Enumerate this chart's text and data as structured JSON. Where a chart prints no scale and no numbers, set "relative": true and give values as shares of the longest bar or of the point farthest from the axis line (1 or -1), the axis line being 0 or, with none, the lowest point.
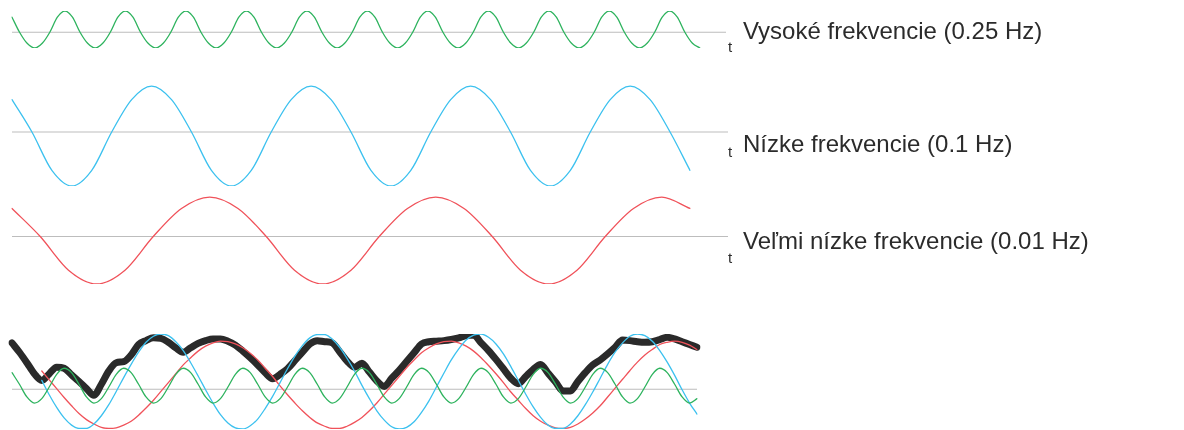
{
  "chart_data": [
    {
      "type": "line",
      "xlabel": "t",
      "relative": true,
      "tick_labels": false,
      "categories": [
        null,
        null,
        null,
        null,
        null,
        null,
        null,
        null,
        null,
        null,
        null,
        null,
        null,
        null,
        null,
        null,
        null,
        null,
        null,
        null,
        null,
        null,
        null,
        null,
        null,
        null,
        null,
        null,
        null,
        null,
        null,
        null,
        null,
        null,
        null,
        null,
        null,
        null,
        null,
        null,
        null,
        null,
        null,
        null,
        null,
        null,
        null,
        null,
        null,
        null,
        null,
        null,
        null,
        null,
        null,
        null,
        null,
        null,
        null,
        null,
        null,
        null,
        null,
        null,
        null,
        null,
        null,
        null,
        null,
        null,
        null,
        null,
        null,
        null,
        null,
        null,
        null,
        null,
        null,
        null,
        null,
        null,
        null,
        null,
        null,
        null,
        null,
        null,
        null,
        null,
        null,
        null
      ],
      "series": [
        {
          "name": "Vysoké frekvencie (0.25 Hz)",
          "color": "#2eb35e",
          "values": [
            0.71,
            0,
            -0.52,
            -0.74,
            -0.52,
            0,
            0.71,
            1,
            0.71,
            0,
            -0.52,
            -0.74,
            -0.52,
            0,
            0.71,
            1,
            0.71,
            0,
            -0.52,
            -0.74,
            -0.52,
            0,
            0.71,
            1,
            0.71,
            0,
            -0.52,
            -0.74,
            -0.52,
            0,
            0.71,
            1,
            0.71,
            0,
            -0.52,
            -0.74,
            -0.52,
            0,
            0.71,
            1,
            0.71,
            0,
            -0.52,
            -0.74,
            -0.52,
            0,
            0.71,
            1,
            0.71,
            0,
            -0.52,
            -0.74,
            -0.52,
            0,
            0.71,
            1,
            0.71,
            0,
            -0.52,
            -0.74,
            -0.52,
            0,
            0.71,
            1,
            0.71,
            0,
            -0.52,
            -0.74,
            -0.52,
            0,
            0.71,
            1,
            0.71,
            0,
            -0.52,
            -0.74,
            -0.52,
            0,
            0.71,
            1,
            0.71,
            0,
            -0.52,
            -0.74,
            -0.52,
            0,
            0.71,
            1,
            0.71,
            0,
            -0.52,
            -0.74
          ]
        }
      ]
    },
    {
      "type": "line",
      "xlabel": "t",
      "relative": true,
      "tick_labels": false,
      "categories": [
        null,
        null,
        null,
        null,
        null,
        null,
        null,
        null,
        null,
        null,
        null,
        null,
        null,
        null,
        null,
        null,
        null,
        null,
        null,
        null,
        null,
        null,
        null,
        null,
        null,
        null,
        null,
        null,
        null,
        null,
        null,
        null,
        null,
        null,
        null
      ],
      "series": [
        {
          "name": "Nízke frekvencie (0.1 Hz)",
          "color": "#3cc1ef",
          "values": [
            0.6,
            0,
            -0.71,
            -1,
            -0.71,
            0,
            0.6,
            0.85,
            0.6,
            0,
            -0.71,
            -1,
            -0.71,
            0,
            0.6,
            0.85,
            0.6,
            0,
            -0.71,
            -1,
            -0.71,
            0,
            0.6,
            0.85,
            0.6,
            0,
            -0.71,
            -1,
            -0.71,
            0,
            0.6,
            0.85,
            0.6,
            0,
            -0.71
          ]
        }
      ]
    },
    {
      "type": "line",
      "xlabel": "t",
      "relative": true,
      "tick_labels": false,
      "categories": [
        null,
        null,
        null,
        null,
        null,
        null,
        null,
        null,
        null,
        null,
        null,
        null,
        null,
        null,
        null,
        null,
        null,
        null,
        null,
        null,
        null,
        null,
        null,
        null,
        null
      ],
      "series": [
        {
          "name": "Veľmi nízke frekvencie (0.01 Hz)",
          "color": "#f0525a",
          "values": [
            0.59,
            0,
            -0.71,
            -1,
            -0.71,
            0,
            0.59,
            0.83,
            0.59,
            0,
            -0.71,
            -1,
            -0.71,
            0,
            0.59,
            0.83,
            0.59,
            0,
            -0.71,
            -1,
            -0.71,
            0,
            0.59,
            0.83,
            0.59
          ]
        }
      ]
    },
    {
      "type": "line",
      "relative": true,
      "tick_labels": false,
      "categories": [
        null,
        null,
        null,
        null,
        null,
        null,
        null,
        null,
        null,
        null,
        null,
        null,
        null,
        null,
        null,
        null,
        null,
        null,
        null,
        null,
        null,
        null,
        null,
        null,
        null,
        null,
        null,
        null,
        null,
        null,
        null,
        null,
        null,
        null,
        null,
        null,
        null,
        null,
        null,
        null,
        null,
        null,
        null,
        null,
        null,
        null,
        null,
        null,
        null,
        null,
        null,
        null,
        null,
        null,
        null,
        null,
        null,
        null,
        null,
        null,
        null,
        null,
        null,
        null,
        null,
        null,
        null,
        null,
        null,
        null,
        null,
        null,
        null,
        null,
        null,
        null,
        null,
        null,
        null,
        null,
        null,
        null,
        null,
        null,
        null,
        null,
        null,
        null,
        null,
        null,
        null,
        null,
        null
      ],
      "series": [
        {
          "color": "#2eb35e",
          "values": [
            0.3,
            0.09,
            -0.14,
            -0.25,
            -0.17,
            0.04,
            0.27,
            0.38,
            0.3,
            0.09,
            -0.14,
            -0.25,
            -0.17,
            0.04,
            0.27,
            0.38,
            0.3,
            0.09,
            -0.14,
            -0.25,
            -0.17,
            0.04,
            0.27,
            0.38,
            0.3,
            0.09,
            -0.14,
            -0.25,
            -0.17,
            0.04,
            0.27,
            0.38,
            0.3,
            0.09,
            -0.14,
            -0.25,
            -0.17,
            0.04,
            0.27,
            0.38,
            0.3,
            0.09,
            -0.14,
            -0.25,
            -0.17,
            0.04,
            0.27,
            0.38,
            0.3,
            0.09,
            -0.14,
            -0.25,
            -0.17,
            0.04,
            0.27,
            0.38,
            0.3,
            0.09,
            -0.14,
            -0.25,
            -0.17,
            0.04,
            0.27,
            0.38,
            0.3,
            0.09,
            -0.14,
            -0.25,
            -0.17,
            0.04,
            0.27,
            0.38,
            0.3,
            0.09,
            -0.14,
            -0.25,
            -0.17,
            0.04,
            0.27,
            0.38,
            0.3,
            0.09,
            -0.14,
            -0.25,
            -0.17,
            0.04,
            0.27,
            0.38,
            0.3,
            0.09,
            -0.14,
            -0.25,
            -0.17
          ]
        },
        {
          "color": "#3cc1ef",
          "values": [
            null,
            null,
            null,
            null,
            0.16,
            -0.1,
            -0.33,
            -0.52,
            -0.65,
            -0.71,
            -0.71,
            -0.63,
            -0.48,
            -0.28,
            -0.04,
            0.21,
            0.45,
            0.67,
            0.85,
            0.96,
            1,
            0.97,
            0.86,
            0.7,
            0.48,
            0.24,
            -0.01,
            -0.25,
            -0.46,
            -0.61,
            -0.7,
            -0.72,
            -0.66,
            -0.54,
            -0.35,
            -0.13,
            0.12,
            0.37,
            0.6,
            0.79,
            0.93,
            0.99,
            0.99,
            0.91,
            0.76,
            0.56,
            0.33,
            0.07,
            -0.17,
            -0.39,
            -0.56,
            -0.68,
            -0.72,
            -0.69,
            -0.59,
            -0.42,
            -0.21,
            0.04,
            0.29,
            0.53,
            0.73,
            0.89,
            0.98,
            1,
            0.94,
            0.82,
            0.64,
            0.41,
            0.16,
            -0.09,
            -0.32,
            -0.51,
            -0.65,
            -0.71,
            -0.71,
            -0.63,
            -0.48,
            -0.28,
            -0.05,
            0.2,
            0.45,
            0.67,
            0.84,
            0.96,
            1,
            0.97,
            0.87,
            0.7,
            0.49,
            0.25,
            -0.01,
            -0.25,
            -0.45
          ]
        },
        {
          "color": "#f0525a",
          "values": [
            null,
            null,
            null,
            null,
            0.33,
            0.17,
            0.01,
            -0.15,
            -0.3,
            -0.44,
            -0.55,
            -0.63,
            -0.69,
            -0.71,
            -0.7,
            -0.65,
            -0.58,
            -0.47,
            -0.34,
            -0.2,
            -0.04,
            0.12,
            0.28,
            0.44,
            0.57,
            0.69,
            0.78,
            0.84,
            0.87,
            0.86,
            0.82,
            0.75,
            0.65,
            0.53,
            0.38,
            0.23,
            0.06,
            -0.1,
            -0.25,
            -0.39,
            -0.51,
            -0.61,
            -0.67,
            -0.71,
            -0.71,
            -0.67,
            -0.6,
            -0.51,
            -0.39,
            -0.25,
            -0.09,
            0.07,
            0.23,
            0.39,
            0.53,
            0.66,
            0.75,
            0.82,
            0.86,
            0.87,
            0.84,
            0.78,
            0.69,
            0.57,
            0.43,
            0.28,
            0.12,
            -0.05,
            -0.2,
            -0.35,
            -0.48,
            -0.58,
            -0.65,
            -0.7,
            -0.71,
            -0.69,
            -0.63,
            -0.54,
            -0.43,
            -0.3,
            -0.14,
            0.02,
            0.18,
            0.34,
            0.49,
            0.62,
            0.72,
            0.81,
            0.85,
            0.87,
            0.85,
            0.8,
            0.72
          ]
        },
        {
          "color": "#2a2a2a",
          "values": [
            0.84,
            0.67,
            0.48,
            0.28,
            0.16,
            0.28,
            0.4,
            0.38,
            0.26,
            0.14,
            0.01,
            -0.11,
            0.09,
            0.33,
            0.48,
            0.5,
            0.62,
            0.81,
            0.88,
            0.93,
            0.92,
            0.85,
            0.75,
            0.67,
            0.75,
            0.83,
            0.88,
            0.91,
            0.91,
            0.87,
            0.8,
            0.69,
            0.57,
            0.44,
            0.3,
            0.19,
            0.27,
            0.37,
            0.52,
            0.67,
            0.82,
            0.88,
            0.86,
            0.84,
            0.68,
            0.51,
            0.4,
            0.47,
            0.31,
            0.15,
            0.05,
            0.2,
            0.34,
            0.5,
            0.66,
            0.82,
            0.86,
            0.87,
            0.88,
            0.9,
            0.93,
            0.97,
            0.98,
            0.84,
            0.7,
            0.54,
            0.37,
            0.2,
            0.1,
            0.23,
            0.36,
            0.45,
            0.29,
            0.13,
            -0.03,
            -0.03,
            0.14,
            0.3,
            0.44,
            0.53,
            0.64,
            0.76,
            0.89,
            0.88,
            0.86,
            0.85,
            0.86,
            0.9,
            0.94,
            0.91,
            0.86,
            0.81,
            0.76
          ]
        }
      ]
    }
  ]
}
